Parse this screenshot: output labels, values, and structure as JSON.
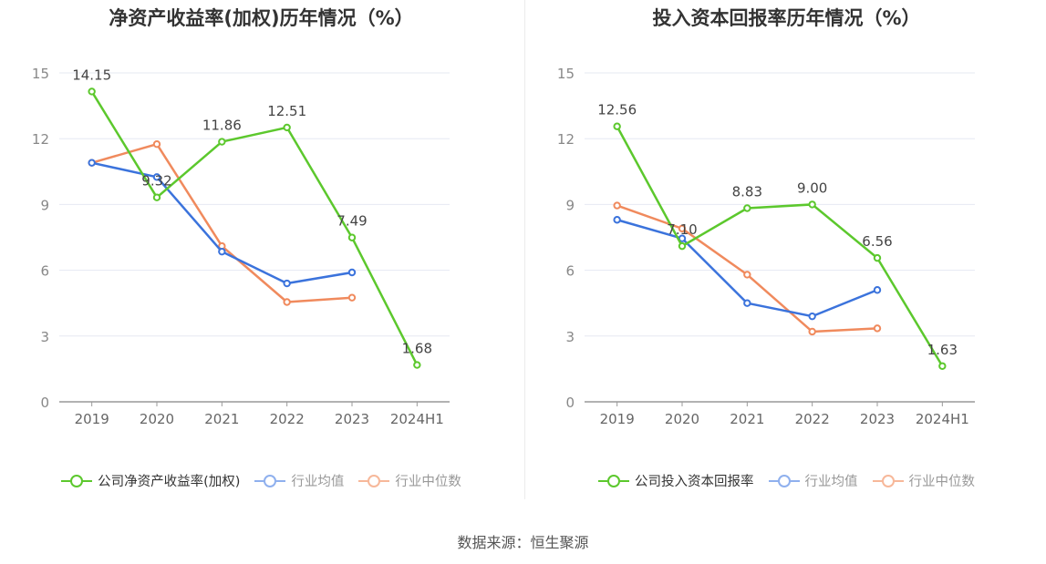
{
  "source": "数据来源：恒生聚源",
  "colors": {
    "company": "#5cc82d",
    "avg": "#3b73dc",
    "median": "#f08a5d"
  },
  "charts": [
    {
      "title": "净资产收益率(加权)历年情况（%）",
      "legend": [
        "公司净资产收益率(加权)",
        "行业均值",
        "行业中位数"
      ]
    },
    {
      "title": "投入资本回报率历年情况（%）",
      "legend": [
        "公司投入资本回报率",
        "行业均值",
        "行业中位数"
      ]
    }
  ],
  "chart_data": [
    {
      "type": "line",
      "title": "净资产收益率(加权)历年情况（%）",
      "categories": [
        "2019",
        "2020",
        "2021",
        "2022",
        "2023",
        "2024H1"
      ],
      "ylim": [
        0,
        15
      ],
      "yticks": [
        "0",
        "3",
        "6",
        "9",
        "12",
        "15"
      ],
      "grid": true,
      "legend_position": "bottom",
      "series": [
        {
          "name": "公司净资产收益率(加权)",
          "values": [
            14.15,
            9.32,
            11.86,
            12.51,
            7.49,
            1.68
          ],
          "labels": [
            "14.15",
            "9.32",
            "11.86",
            "12.51",
            "7.49",
            "1.68"
          ]
        },
        {
          "name": "行业均值",
          "values": [
            10.9,
            10.25,
            6.85,
            5.4,
            5.9,
            null
          ]
        },
        {
          "name": "行业中位数",
          "values": [
            10.9,
            11.75,
            7.1,
            4.55,
            4.75,
            null
          ]
        }
      ]
    },
    {
      "type": "line",
      "title": "投入资本回报率历年情况（%）",
      "categories": [
        "2019",
        "2020",
        "2021",
        "2022",
        "2023",
        "2024H1"
      ],
      "ylim": [
        0,
        15
      ],
      "yticks": [
        "0",
        "3",
        "6",
        "9",
        "12",
        "15"
      ],
      "grid": true,
      "legend_position": "bottom",
      "series": [
        {
          "name": "公司投入资本回报率",
          "values": [
            12.56,
            7.1,
            8.83,
            9.0,
            6.56,
            1.63
          ],
          "labels": [
            "12.56",
            "7.10",
            "8.83",
            "9.00",
            "6.56",
            "1.63"
          ]
        },
        {
          "name": "行业均值",
          "values": [
            8.3,
            7.45,
            4.5,
            3.9,
            5.1,
            null
          ]
        },
        {
          "name": "行业中位数",
          "values": [
            8.95,
            7.9,
            5.8,
            3.2,
            3.35,
            null
          ]
        }
      ]
    }
  ]
}
